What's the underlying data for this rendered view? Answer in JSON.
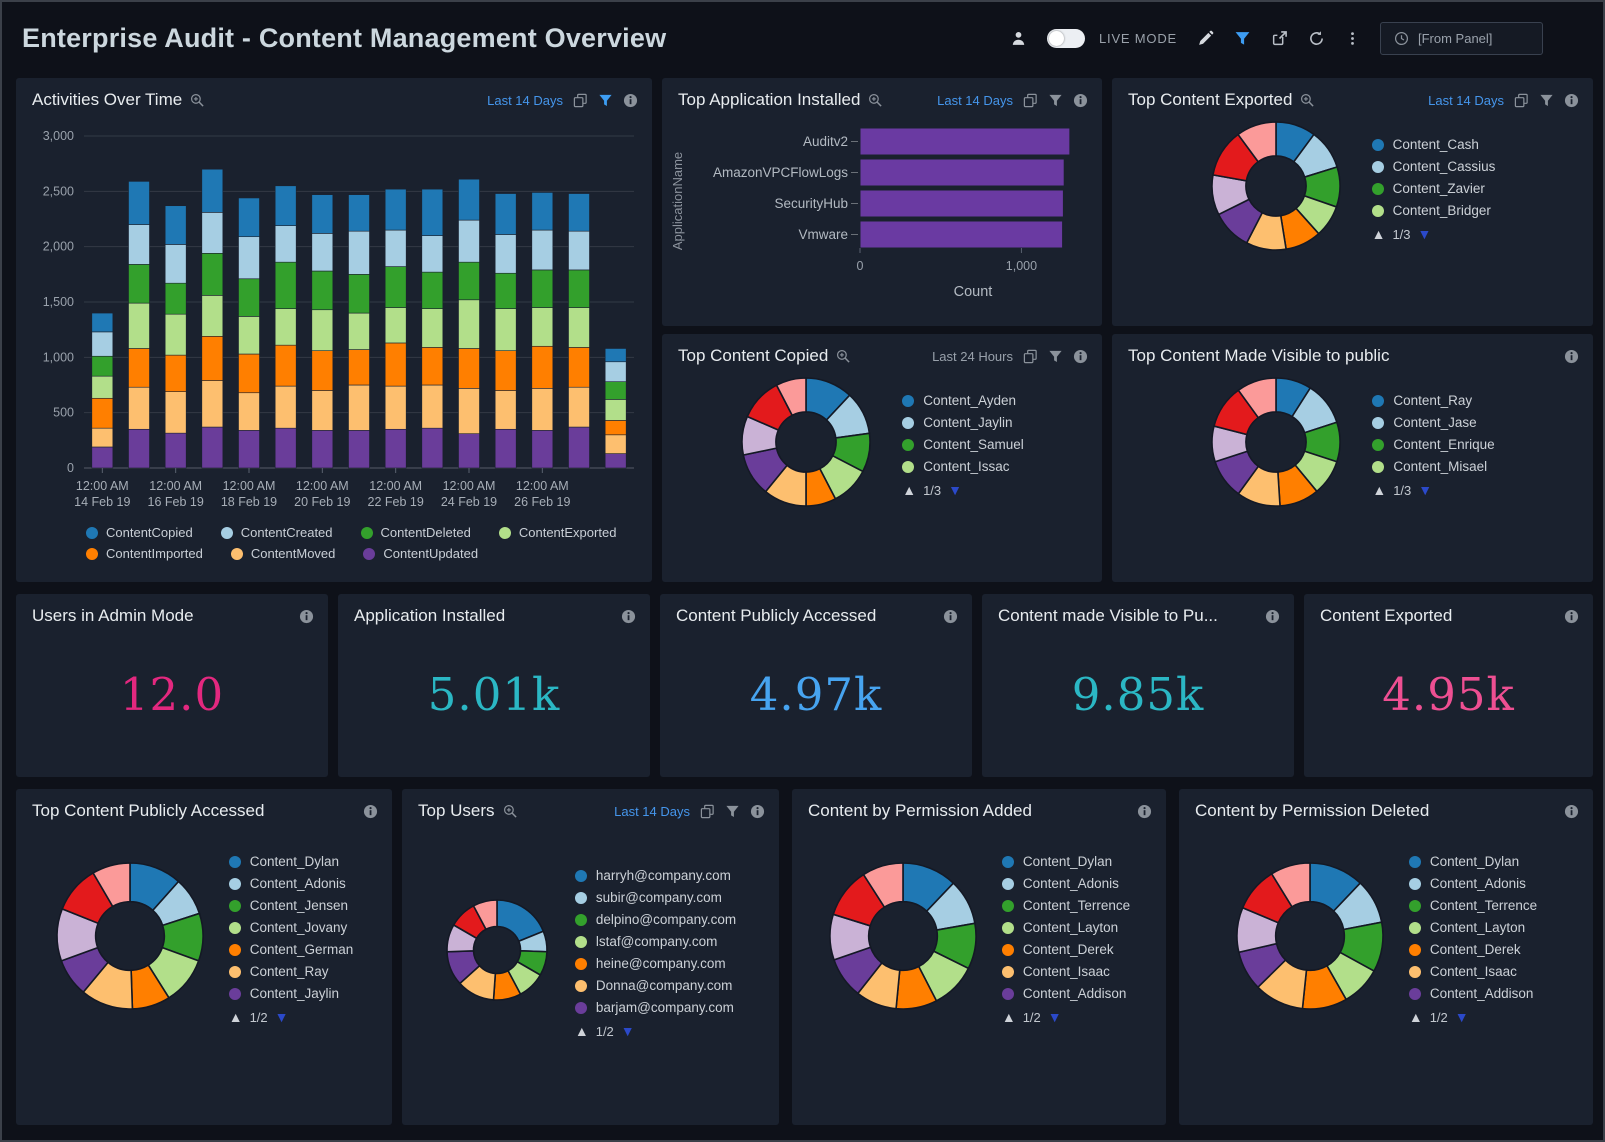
{
  "palette": [
    "#1f78b4",
    "#a6cee3",
    "#33a02c",
    "#b2df8a",
    "#ff7f00",
    "#fdbf6f",
    "#6a3d9a",
    "#cab2d6",
    "#e31a1c",
    "#fb9a99"
  ],
  "header": {
    "title": "Enterprise Audit - Content Management Overview",
    "live_mode_label": "LIVE MODE",
    "from_panel_label": "[From Panel]"
  },
  "panels": {
    "activities": {
      "title": "Activities Over Time",
      "time_range": "Last 14 Days",
      "chart_data": {
        "type": "stacked_bar",
        "categories": [
          "14 Feb 19",
          "15 Feb 19",
          "16 Feb 19",
          "17 Feb 19",
          "18 Feb 19",
          "19 Feb 19",
          "20 Feb 19",
          "21 Feb 19",
          "22 Feb 19",
          "23 Feb 19",
          "24 Feb 19",
          "25 Feb 19",
          "26 Feb 19",
          "27 Feb 19",
          "28 Feb 19"
        ],
        "x_tick_labels": [
          {
            "time": "12:00 AM",
            "date": "14 Feb 19"
          },
          {
            "time": "12:00 AM",
            "date": "16 Feb 19"
          },
          {
            "time": "12:00 AM",
            "date": "18 Feb 19"
          },
          {
            "time": "12:00 AM",
            "date": "20 Feb 19"
          },
          {
            "time": "12:00 AM",
            "date": "22 Feb 19"
          },
          {
            "time": "12:00 AM",
            "date": "24 Feb 19"
          },
          {
            "time": "12:00 AM",
            "date": "26 Feb 19"
          }
        ],
        "ylim": [
          0,
          3000
        ],
        "ytick_labels": [
          "0",
          "500",
          "1,000",
          "1,500",
          "2,000",
          "2,500",
          "3,000"
        ],
        "yticks": [
          0,
          500,
          1000,
          1500,
          2000,
          2500,
          3000
        ],
        "stack_bottom_to_top": [
          "ContentUpdated",
          "ContentMoved",
          "ContentImported",
          "ContentExported",
          "ContentDeleted",
          "ContentCreated",
          "ContentCopied"
        ],
        "series": [
          {
            "name": "ContentCopied",
            "color": "#1f78b4",
            "values": [
              170,
              390,
              350,
              390,
              350,
              360,
              350,
              330,
              370,
              420,
              370,
              370,
              340,
              340,
              120
            ]
          },
          {
            "name": "ContentCreated",
            "color": "#a6cee3",
            "values": [
              220,
              360,
              350,
              370,
              380,
              330,
              340,
              390,
              330,
              330,
              380,
              350,
              360,
              350,
              180
            ]
          },
          {
            "name": "ContentDeleted",
            "color": "#33a02c",
            "values": [
              180,
              350,
              280,
              380,
              340,
              420,
              350,
              350,
              370,
              330,
              340,
              320,
              340,
              340,
              160
            ]
          },
          {
            "name": "ContentExported",
            "color": "#b2df8a",
            "values": [
              200,
              410,
              370,
              370,
              340,
              330,
              370,
              330,
              320,
              350,
              440,
              380,
              350,
              360,
              190
            ]
          },
          {
            "name": "ContentImported",
            "color": "#ff7f00",
            "values": [
              270,
              350,
              330,
              400,
              350,
              370,
              360,
              320,
              390,
              340,
              360,
              360,
              380,
              360,
              130
            ]
          },
          {
            "name": "ContentMoved",
            "color": "#fdbf6f",
            "values": [
              170,
              380,
              375,
              420,
              340,
              380,
              360,
              410,
              390,
              390,
              410,
              350,
              380,
              360,
              170
            ]
          },
          {
            "name": "ContentUpdated",
            "color": "#6a3d9a",
            "values": [
              190,
              350,
              315,
              370,
              340,
              360,
              340,
              340,
              350,
              360,
              310,
              350,
              340,
              370,
              130
            ]
          }
        ]
      }
    },
    "top_application": {
      "title": "Top Application Installed",
      "time_range": "Last 14 Days",
      "chart_data": {
        "type": "bar",
        "orientation": "horizontal",
        "categories": [
          "Auditv2",
          "AmazonVPCFlowLogs",
          "SecurityHub",
          "Vmware"
        ],
        "values": [
          1300,
          1265,
          1260,
          1255
        ],
        "xlabel": "Count",
        "ylabel": "ApplicationName",
        "xtick_labels": [
          "0",
          "1,000"
        ],
        "xticks": [
          0,
          1000
        ],
        "xmax": 1400,
        "bar_color": "#6a3aa2"
      }
    },
    "top_exported": {
      "title": "Top Content Exported",
      "time_range": "Last 14 Days",
      "legend": [
        "Content_Cash",
        "Content_Cassius",
        "Content_Zavier",
        "Content_Bridger"
      ],
      "pagination": "1/3",
      "chart_data": {
        "type": "pie",
        "values": [
          10,
          10,
          10,
          8,
          9,
          10,
          10,
          10,
          12,
          10
        ]
      }
    },
    "top_copied": {
      "title": "Top Content Copied",
      "time_range": "Last 24 Hours",
      "legend": [
        "Content_Ayden",
        "Content_Jaylin",
        "Content_Samuel",
        "Content_Issac"
      ],
      "pagination": "1/3",
      "chart_data": {
        "type": "pie",
        "values": [
          11,
          10,
          9,
          9,
          7,
          10,
          10,
          9,
          10,
          7
        ]
      }
    },
    "top_visible": {
      "title": "Top Content Made Visible to public",
      "legend": [
        "Content_Ray",
        "Content_Jase",
        "Content_Enrique",
        "Content_Misael"
      ],
      "pagination": "1/3",
      "chart_data": {
        "type": "pie",
        "values": [
          9,
          11,
          10,
          9,
          10,
          11,
          10,
          9,
          11,
          10
        ]
      }
    },
    "top_publicly_accessed": {
      "title": "Top Content Publicly Accessed",
      "legend": [
        "Content_Dylan",
        "Content_Adonis",
        "Content_Jensen",
        "Content_Jovany",
        "Content_German",
        "Content_Ray",
        "Content_Jaylin"
      ],
      "pagination": "1/2",
      "chart_data": {
        "type": "pie",
        "values": [
          11,
          8,
          10,
          10,
          8,
          11,
          8,
          11,
          10,
          8
        ]
      }
    },
    "top_users": {
      "title": "Top Users",
      "time_range": "Last 14 Days",
      "legend": [
        "harryh@company.com",
        "subir@company.com",
        "delpino@company.com",
        "lstaf@company.com",
        "heine@company.com",
        "Donna@company.com",
        "barjam@company.com"
      ],
      "pagination": "1/2",
      "chart_data": {
        "type": "pie",
        "values": [
          17,
          6,
          7,
          8,
          8,
          11,
          10,
          8,
          8,
          7
        ]
      }
    },
    "perm_added": {
      "title": "Content by Permission Added",
      "legend": [
        "Content_Dylan",
        "Content_Adonis",
        "Content_Terrence",
        "Content_Layton",
        "Content_Derek",
        "Content_Isaac",
        "Content_Addison"
      ],
      "pagination": "1/2",
      "chart_data": {
        "type": "pie",
        "values": [
          12,
          10,
          10,
          10,
          9,
          9,
          9,
          10,
          11,
          9
        ]
      }
    },
    "perm_deleted": {
      "title": "Content by Permission Deleted",
      "legend": [
        "Content_Dylan",
        "Content_Adonis",
        "Content_Terrence",
        "Content_Layton",
        "Content_Derek",
        "Content_Isaac",
        "Content_Addison"
      ],
      "pagination": "1/2",
      "chart_data": {
        "type": "pie",
        "values": [
          11,
          9,
          10,
          8,
          9,
          10,
          8,
          9,
          9,
          8
        ]
      }
    }
  },
  "stats": {
    "users_admin": {
      "title": "Users in Admin Mode",
      "value": "12.0",
      "color": "#e3287f"
    },
    "app_installed": {
      "title": "Application Installed",
      "value": "5.01k",
      "color": "#2bb7c4"
    },
    "publicly_accessed": {
      "title": "Content Publicly Accessed",
      "value": "4.97k",
      "color": "#47a4f0"
    },
    "visible_public": {
      "title": "Content made Visible to Pu...",
      "value": "9.85k",
      "color": "#2bb7c4"
    },
    "exported": {
      "title": "Content Exported",
      "value": "4.95k",
      "color": "#ee4f92"
    }
  }
}
